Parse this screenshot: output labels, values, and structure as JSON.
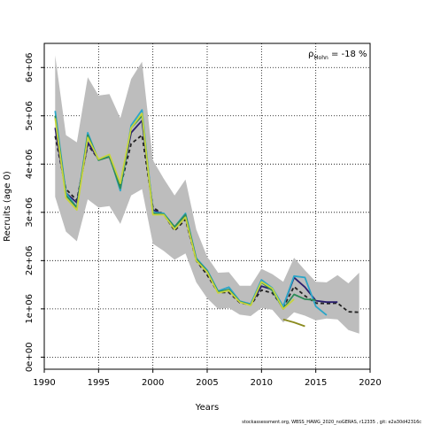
{
  "chart_data": {
    "type": "line",
    "title": "",
    "xlabel": "Years",
    "ylabel": "Recruits (age 0)",
    "xlim": [
      1990,
      2020
    ],
    "ylim": [
      -250000,
      6500000
    ],
    "x_ticks": [
      1990,
      1995,
      2000,
      2005,
      2010,
      2015,
      2020
    ],
    "x_tick_labels": [
      "1990",
      "1995",
      "2000",
      "2005",
      "2010",
      "2015",
      "2020"
    ],
    "y_ticks": [
      0,
      1000000,
      2000000,
      3000000,
      4000000,
      5000000,
      6000000
    ],
    "y_tick_labels": [
      "0e+00",
      "1e+06",
      "2e+06",
      "3e+06",
      "4e+06",
      "5e+06",
      "6e+06"
    ],
    "grid": true,
    "annotation": {
      "prefix": "ρ",
      "subscript": "Mohn",
      "value": " = -18 %"
    },
    "footnote": "stockassessment.org, WBSS_HAWG_2020_noGERAS, r12335 ,  git: e2a30d42316c",
    "band": {
      "x": [
        1991,
        1992,
        1993,
        1994,
        1995,
        1996,
        1997,
        1998,
        1999,
        2000,
        2001,
        2002,
        2003,
        2004,
        2005,
        2006,
        2007,
        2008,
        2009,
        2010,
        2011,
        2012,
        2013,
        2014,
        2015,
        2016,
        2017,
        2018,
        2019
      ],
      "upper": [
        6250000,
        4600000,
        4450000,
        5800000,
        5420000,
        5450000,
        4950000,
        5760000,
        6120000,
        4080000,
        3700000,
        3350000,
        3680000,
        2640000,
        2080000,
        1750000,
        1760000,
        1480000,
        1480000,
        1830000,
        1720000,
        1560000,
        2060000,
        1800000,
        1560000,
        1550000,
        1700000,
        1530000,
        1750000
      ],
      "lower": [
        3320000,
        2600000,
        2400000,
        3270000,
        3100000,
        3130000,
        2760000,
        3350000,
        3480000,
        2350000,
        2200000,
        2020000,
        2150000,
        1550000,
        1220000,
        1000000,
        1020000,
        880000,
        850000,
        1020000,
        980000,
        720000,
        930000,
        860000,
        760000,
        800000,
        780000,
        560000,
        490000
      ]
    },
    "series": [
      {
        "color": "#222222",
        "dashed": true,
        "x": [
          1991,
          1992,
          1993,
          1994,
          1995,
          1996,
          1997,
          1998,
          1999,
          2000,
          2001,
          2002,
          2003,
          2004,
          2005,
          2006,
          2007,
          2008,
          2009,
          2010,
          2011,
          2012,
          2013,
          2014,
          2015,
          2016,
          2017,
          2018,
          2019
        ],
        "values": [
          4580000,
          3480000,
          3250000,
          4400000,
          4100000,
          4150000,
          3520000,
          4420000,
          4600000,
          3100000,
          2960000,
          2620000,
          2850000,
          2000000,
          1700000,
          1340000,
          1340000,
          1130000,
          1080000,
          1390000,
          1330000,
          1030000,
          1460000,
          1270000,
          1120000,
          1110000,
          1120000,
          940000,
          930000
        ]
      },
      {
        "color": "#2a1f6e",
        "dashed": false,
        "x": [
          1991,
          1992,
          1993,
          1994,
          1995,
          1996,
          1997,
          1998,
          1999,
          2000,
          2001,
          2002,
          2003,
          2004,
          2005,
          2006,
          2007,
          2008,
          2009,
          2010,
          2011,
          2012,
          2013,
          2014,
          2015,
          2016,
          2017
        ],
        "values": [
          4750000,
          3400000,
          3200000,
          4450000,
          4100000,
          4150000,
          3550000,
          4650000,
          4900000,
          3050000,
          2960000,
          2650000,
          2900000,
          2020000,
          1760000,
          1350000,
          1390000,
          1150000,
          1090000,
          1470000,
          1400000,
          1050000,
          1650000,
          1450000,
          1170000,
          1140000,
          1140000
        ]
      },
      {
        "color": "#2aa6c8",
        "dashed": false,
        "x": [
          1991,
          1992,
          1993,
          1994,
          1995,
          1996,
          1997,
          1998,
          1999,
          2000,
          2001,
          2002,
          2003,
          2004,
          2005,
          2006,
          2007,
          2008,
          2009,
          2010,
          2011,
          2012,
          2013,
          2014,
          2015,
          2016
        ],
        "values": [
          5100000,
          3400000,
          3100000,
          4650000,
          4080000,
          4180000,
          3450000,
          4800000,
          5120000,
          3000000,
          2980000,
          2700000,
          2980000,
          2050000,
          1800000,
          1370000,
          1450000,
          1160000,
          1100000,
          1600000,
          1430000,
          1050000,
          1680000,
          1650000,
          1050000,
          870000
        ]
      },
      {
        "color": "#2e8b57",
        "dashed": false,
        "x": [
          1991,
          1992,
          1993,
          1994,
          1995,
          1996,
          1997,
          1998,
          1999,
          2000,
          2001,
          2002,
          2003,
          2004,
          2005,
          2006,
          2007,
          2008,
          2009,
          2010,
          2011,
          2012,
          2013,
          2014,
          2015
        ],
        "values": [
          5000000,
          3350000,
          3100000,
          4600000,
          4080000,
          4150000,
          3500000,
          4750000,
          5000000,
          2980000,
          2960000,
          2700000,
          2950000,
          2030000,
          1780000,
          1350000,
          1400000,
          1150000,
          1080000,
          1550000,
          1380000,
          1000000,
          1300000,
          1200000,
          1180000
        ]
      },
      {
        "color": "#c8d43c",
        "dashed": false,
        "x": [
          1991,
          1992,
          1993,
          1994,
          1995,
          1996,
          1997,
          1998,
          1999,
          2000,
          2001,
          2002,
          2003,
          2004,
          2005,
          2006,
          2007,
          2008,
          2009,
          2010,
          2011,
          2012,
          2013
        ],
        "values": [
          4950000,
          3300000,
          3050000,
          4550000,
          4100000,
          4200000,
          3600000,
          4750000,
          5050000,
          2950000,
          2950000,
          2650000,
          2900000,
          2000000,
          1760000,
          1330000,
          1380000,
          1140000,
          1070000,
          1560000,
          1420000,
          1000000,
          1200000
        ]
      },
      {
        "color": "#8a8a1e",
        "dashed": false,
        "x": [
          2012,
          2013,
          2014
        ],
        "values": [
          780000,
          720000,
          640000
        ]
      }
    ]
  }
}
